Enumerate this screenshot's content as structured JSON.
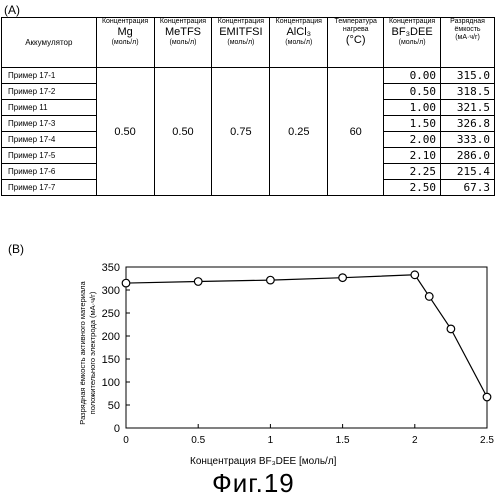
{
  "panel_a_label": "(A)",
  "panel_b_label": "(B)",
  "table": {
    "headers": {
      "battery": "Аккумулятор",
      "mg": {
        "top": "Концентрация",
        "big": "Mg",
        "unit": "(моль/л)"
      },
      "metfs": {
        "top": "Концентрация",
        "big": "MeTFS",
        "unit": "(моль/л)"
      },
      "emitfsi": {
        "top": "Концентрация",
        "big": "EMITFSI",
        "unit": "(моль/л)"
      },
      "alcl3": {
        "top": "Концентрация",
        "big": "AlCl₃",
        "unit": "(моль/л)"
      },
      "temp": {
        "top": "Температура нагрева",
        "big": "(°C)"
      },
      "bf3dee": {
        "top": "Концентрация",
        "big": "BF₃DEE",
        "unit": "(моль/л)"
      },
      "capacity": {
        "top": "Разрядная ёмкость",
        "unit": "(мА·ч/г)"
      }
    },
    "rows": [
      {
        "name": "Пример 17-1",
        "bf3dee": "0.00",
        "capacity": "315.0"
      },
      {
        "name": "Пример 17-2",
        "bf3dee": "0.50",
        "capacity": "318.5"
      },
      {
        "name": "Пример 11",
        "bf3dee": "1.00",
        "capacity": "321.5"
      },
      {
        "name": "Пример 17-3",
        "bf3dee": "1.50",
        "capacity": "326.8"
      },
      {
        "name": "Пример 17-4",
        "bf3dee": "2.00",
        "capacity": "333.0"
      },
      {
        "name": "Пример 17-5",
        "bf3dee": "2.10",
        "capacity": "286.0"
      },
      {
        "name": "Пример 17-6",
        "bf3dee": "2.25",
        "capacity": "215.4"
      },
      {
        "name": "Пример 17-7",
        "bf3dee": "2.50",
        "capacity": "67.3"
      }
    ],
    "constants": {
      "mg": "0.50",
      "metfs": "0.50",
      "emitfsi": "0.75",
      "alcl3": "0.25",
      "temp": "60"
    }
  },
  "chart_data": {
    "type": "line",
    "x": [
      0,
      0.5,
      1.0,
      1.5,
      2.0,
      2.1,
      2.25,
      2.5
    ],
    "series": [
      {
        "values": [
          315.0,
          318.5,
          321.5,
          326.8,
          333.0,
          286.0,
          215.4,
          67.3
        ]
      }
    ],
    "xlabel": "Концентрация BF₃DEE [моль/л]",
    "ylabel_line1": "Разрядная ёмкость активного материала",
    "ylabel_line2": "положительного электрода (мА·ч/г)",
    "xlim": [
      0,
      2.5
    ],
    "ylim": [
      0,
      350
    ],
    "xticks": [
      "0",
      "0.5",
      "1",
      "1.5",
      "2",
      "2.5"
    ],
    "yticks": [
      "0",
      "50",
      "100",
      "150",
      "200",
      "250",
      "300",
      "350"
    ],
    "marker": "open-circle",
    "grid": false
  },
  "caption": "Фиг.19"
}
